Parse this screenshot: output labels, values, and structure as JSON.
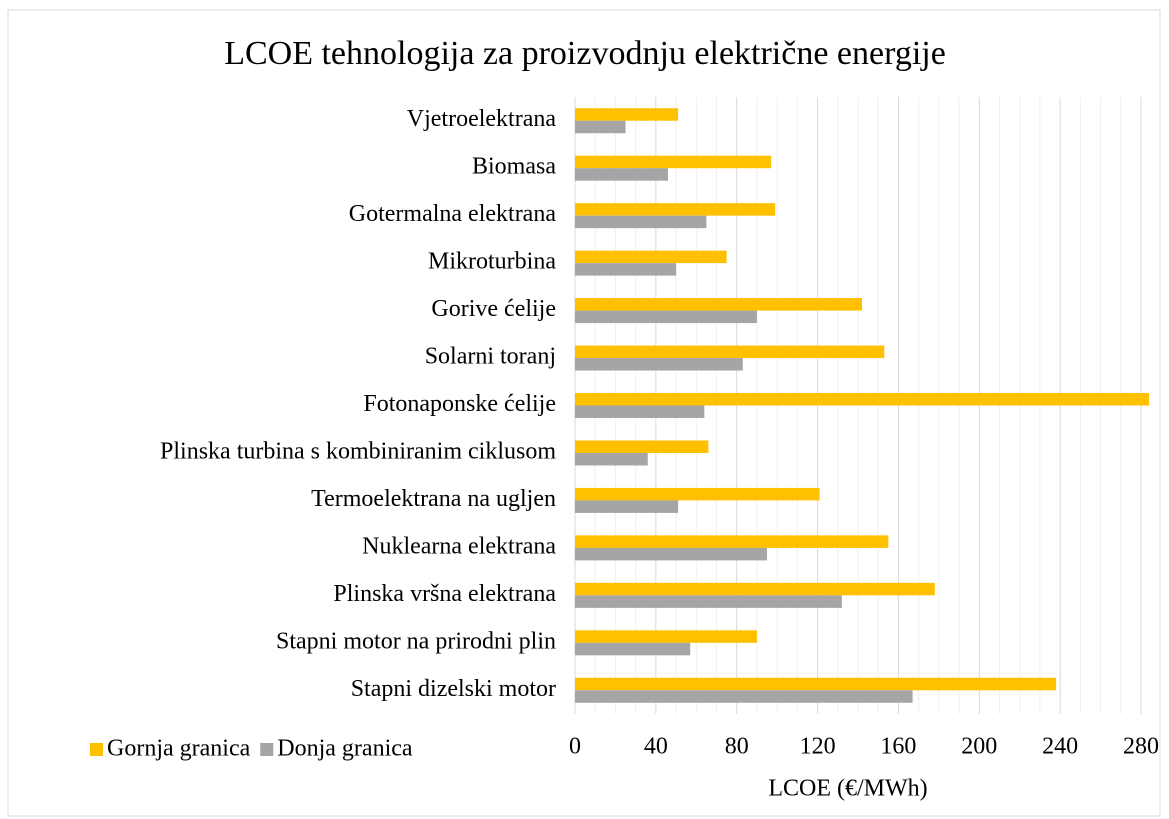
{
  "chart_data": {
    "type": "hbar",
    "title": "LCOE tehnologija za proizvodnju električne energije",
    "xlabel": "LCOE (€/MWh)",
    "categories": [
      "Vjetroelektrana",
      "Biomasa",
      "Gotermalna elektrana",
      "Mikroturbina",
      "Gorive ćelije",
      "Solarni toranj",
      "Fotonaponske ćelije",
      "Plinska turbina s kombiniranim ciklusom",
      "Termoelektrana na ugljen",
      "Nuklearna elektrana",
      "Plinska vršna elektrana",
      "Stapni motor na prirodni plin",
      "Stapni dizelski motor"
    ],
    "series": [
      {
        "name": "Gornja granica",
        "color": "#ffc000",
        "values": [
          51,
          97,
          99,
          75,
          142,
          153,
          284,
          66,
          121,
          155,
          178,
          90,
          238
        ]
      },
      {
        "name": "Donja granica",
        "color": "#a5a5a5",
        "values": [
          25,
          46,
          65,
          50,
          90,
          83,
          64,
          36,
          51,
          95,
          132,
          57,
          167
        ]
      }
    ],
    "xlim": [
      0,
      280
    ],
    "xticks": [
      0,
      40,
      80,
      120,
      160,
      200,
      240,
      280
    ],
    "xticks_minor": [
      10,
      20,
      30,
      50,
      60,
      70,
      90,
      100,
      110,
      130,
      140,
      150,
      170,
      180,
      190,
      210,
      220,
      230,
      250,
      260,
      270
    ],
    "grid": true,
    "legend": "bottom-left"
  }
}
